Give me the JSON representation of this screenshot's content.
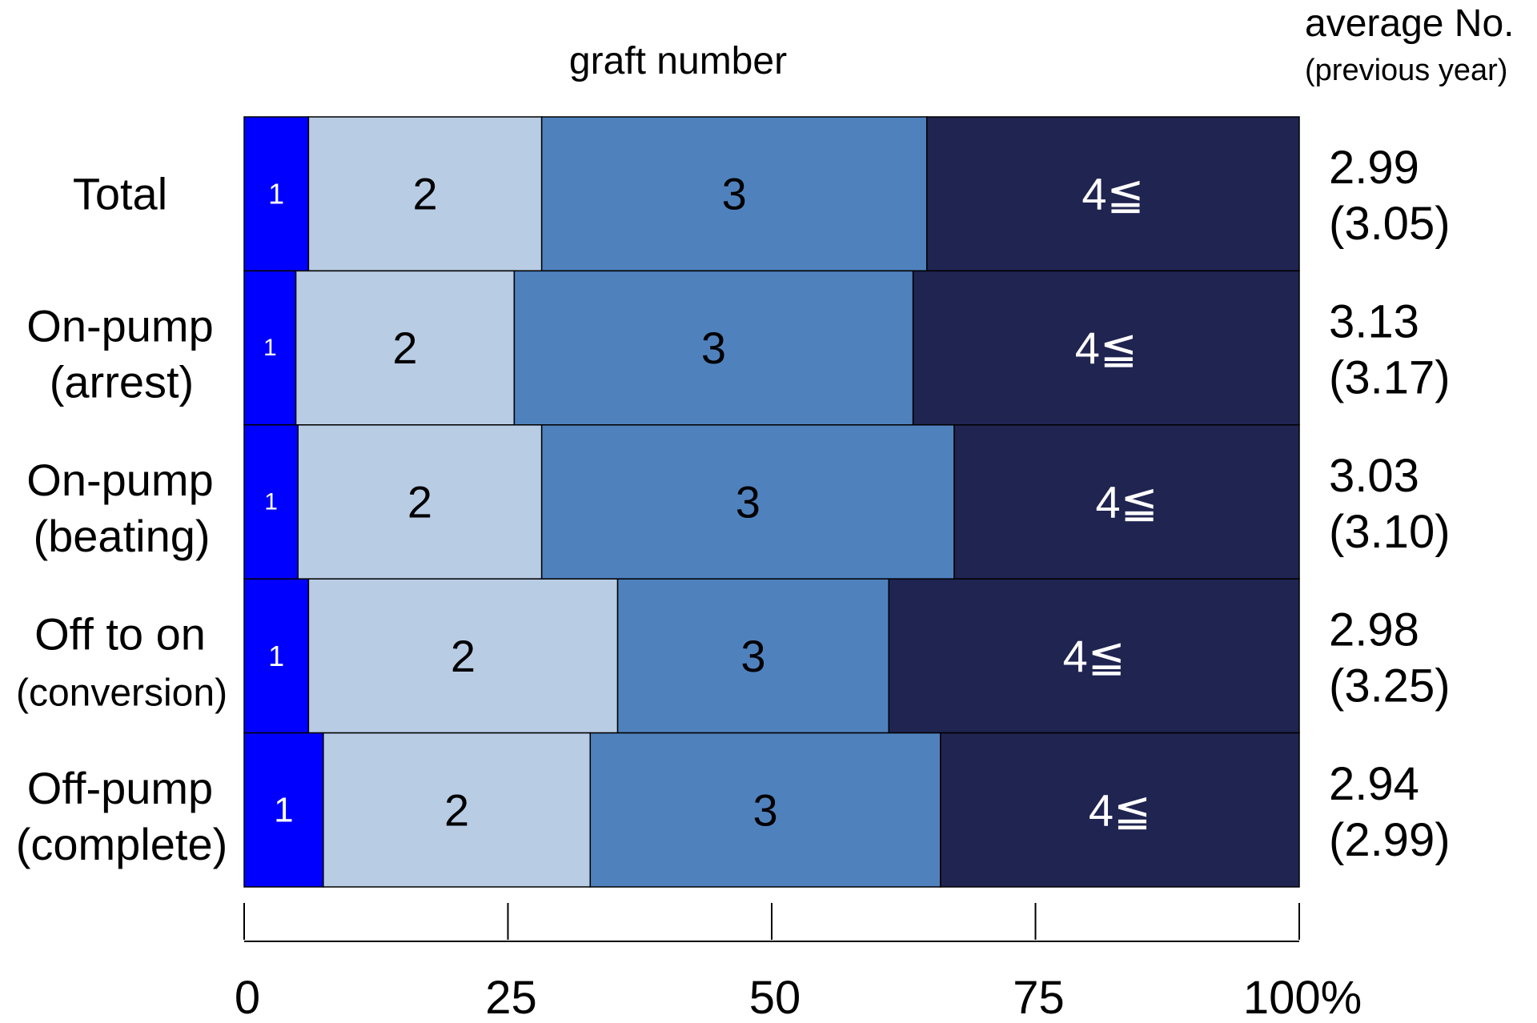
{
  "chart_data": {
    "type": "bar",
    "orientation": "horizontal",
    "stacked": true,
    "title": "graft number",
    "average_header": {
      "line1": "average No.",
      "line2": "(previous year)"
    },
    "categories": [
      {
        "line1": "Total",
        "line2": ""
      },
      {
        "line1": "On-pump",
        "line2": "(arrest)"
      },
      {
        "line1": "On-pump",
        "line2": "(beating)"
      },
      {
        "line1": "Off to on",
        "line2": "(conversion)"
      },
      {
        "line1": "Off-pump",
        "line2": "(complete)"
      }
    ],
    "series": [
      {
        "name": "1",
        "label": "1",
        "color": "#0000ff",
        "label_color": "#ffffff",
        "values": [
          6.1,
          4.9,
          5.1,
          6.1,
          7.5
        ]
      },
      {
        "name": "2",
        "label": "2",
        "color": "#b8cce4",
        "label_color": "#000000",
        "values": [
          22.1,
          20.7,
          23.1,
          29.3,
          25.3
        ]
      },
      {
        "name": "3",
        "label": "3",
        "color": "#4f81bd",
        "label_color": "#000000",
        "values": [
          36.5,
          37.8,
          39.1,
          25.7,
          33.2
        ]
      },
      {
        "name": "4≦",
        "label": "4≦",
        "color": "#1f2451",
        "label_color": "#ffffff",
        "values": [
          35.3,
          36.6,
          32.7,
          38.9,
          34.0
        ]
      }
    ],
    "averages": [
      {
        "value": "2.99",
        "previous": "(3.05)"
      },
      {
        "value": "3.13",
        "previous": "(3.17)"
      },
      {
        "value": "3.03",
        "previous": "(3.10)"
      },
      {
        "value": "2.98",
        "previous": "(3.25)"
      },
      {
        "value": "2.94",
        "previous": "(2.99)"
      }
    ],
    "xlim": [
      0,
      100
    ],
    "x_ticks": [
      {
        "value": 0,
        "label": "0"
      },
      {
        "value": 25,
        "label": "25"
      },
      {
        "value": 50,
        "label": "50"
      },
      {
        "value": 75,
        "label": "75"
      },
      {
        "value": 100,
        "label": "100%"
      }
    ],
    "grid": false,
    "legend": "none"
  }
}
